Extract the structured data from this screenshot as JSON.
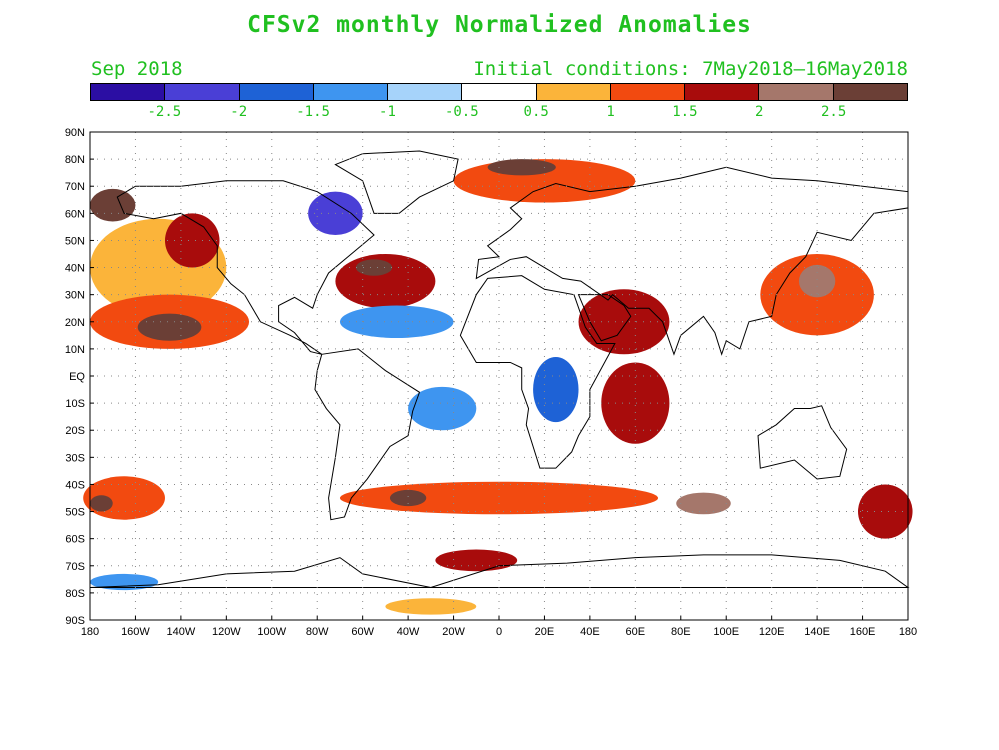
{
  "title": "CFSv2 monthly Normalized Anomalies",
  "valid_month": "Sep 2018",
  "initial_conditions": "Initial conditions: 7May2018–16May2018",
  "colorbar": {
    "colors": [
      "#2b0ea3",
      "#4a3fd6",
      "#1e62d6",
      "#3e95f0",
      "#a6d3fa",
      "#ffffff",
      "#fbb43a",
      "#f24a10",
      "#a80c0c",
      "#a5776b",
      "#6b3f36"
    ],
    "labels": [
      "-2.5",
      "-2",
      "-1.5",
      "-1",
      "-0.5",
      "0.5",
      "1",
      "1.5",
      "2",
      "2.5"
    ]
  },
  "lat_labels": [
    "90N",
    "80N",
    "70N",
    "60N",
    "50N",
    "40N",
    "30N",
    "20N",
    "10N",
    "EQ",
    "10S",
    "20S",
    "30S",
    "40S",
    "50S",
    "60S",
    "70S",
    "80S",
    "90S"
  ],
  "lon_labels": [
    "180",
    "160W",
    "140W",
    "120W",
    "100W",
    "80W",
    "60W",
    "40W",
    "20W",
    "0",
    "20E",
    "40E",
    "60E",
    "80E",
    "100E",
    "120E",
    "140E",
    "160E",
    "180"
  ],
  "anomaly_regions": [
    {
      "name": "north-pacific-warm",
      "lon": -150,
      "lat": 40,
      "rx": 30,
      "ry": 18,
      "level": 0.8
    },
    {
      "name": "north-pacific-core",
      "lon": -135,
      "lat": 50,
      "rx": 12,
      "ry": 10,
      "level": 1.5
    },
    {
      "name": "east-pacific-warm",
      "lon": -145,
      "lat": 20,
      "rx": 35,
      "ry": 10,
      "level": 1.2
    },
    {
      "name": "east-pacific-core",
      "lon": -145,
      "lat": 18,
      "rx": 14,
      "ry": 5,
      "level": 2.6
    },
    {
      "name": "alaska-core",
      "lon": -170,
      "lat": 63,
      "rx": 10,
      "ry": 6,
      "level": 2.6
    },
    {
      "name": "gulf-stream-warm",
      "lon": -50,
      "lat": 35,
      "rx": 22,
      "ry": 10,
      "level": 1.5
    },
    {
      "name": "gulf-stream-core",
      "lon": -55,
      "lat": 40,
      "rx": 8,
      "ry": 3,
      "level": 2.6
    },
    {
      "name": "labrador-cold",
      "lon": -72,
      "lat": 60,
      "rx": 12,
      "ry": 8,
      "level": -2.5
    },
    {
      "name": "atlantic-cold",
      "lon": -45,
      "lat": 20,
      "rx": 25,
      "ry": 6,
      "level": -1.2
    },
    {
      "name": "south-atlantic-cold",
      "lon": -25,
      "lat": -12,
      "rx": 15,
      "ry": 8,
      "level": -1.2
    },
    {
      "name": "central-africa-cold",
      "lon": 25,
      "lat": -5,
      "rx": 10,
      "ry": 12,
      "level": -1.8
    },
    {
      "name": "barents-warm",
      "lon": 20,
      "lat": 72,
      "rx": 40,
      "ry": 8,
      "level": 1.2
    },
    {
      "name": "barents-core",
      "lon": 10,
      "lat": 77,
      "rx": 15,
      "ry": 3,
      "level": 2.6
    },
    {
      "name": "arabian-warm",
      "lon": 55,
      "lat": 20,
      "rx": 20,
      "ry": 12,
      "level": 1.5
    },
    {
      "name": "indian-ocean-warm",
      "lon": 60,
      "lat": -10,
      "rx": 15,
      "ry": 15,
      "level": 1.5
    },
    {
      "name": "west-pacific-warm",
      "lon": 140,
      "lat": 30,
      "rx": 25,
      "ry": 15,
      "level": 1.2
    },
    {
      "name": "west-pacific-core",
      "lon": 140,
      "lat": 35,
      "rx": 8,
      "ry": 6,
      "level": 2
    },
    {
      "name": "south-pacific-warm",
      "lon": -165,
      "lat": -45,
      "rx": 18,
      "ry": 8,
      "level": 1.2
    },
    {
      "name": "south-pacific-core",
      "lon": -175,
      "lat": -47,
      "rx": 5,
      "ry": 3,
      "level": 2.6
    },
    {
      "name": "southern-ocean-warm",
      "lon": 0,
      "lat": -45,
      "rx": 70,
      "ry": 6,
      "level": 1.2
    },
    {
      "name": "southern-ocean-cores",
      "lon": -40,
      "lat": -45,
      "rx": 8,
      "ry": 3,
      "level": 2.6
    },
    {
      "name": "southern-indian-core",
      "lon": 90,
      "lat": -47,
      "rx": 12,
      "ry": 4,
      "level": 2
    },
    {
      "name": "tasman-warm",
      "lon": 170,
      "lat": -50,
      "rx": 12,
      "ry": 10,
      "level": 1.5
    },
    {
      "name": "weddell-warm",
      "lon": -10,
      "lat": -68,
      "rx": 18,
      "ry": 4,
      "level": 1.5
    },
    {
      "name": "ross-cold",
      "lon": -165,
      "lat": -76,
      "rx": 15,
      "ry": 3,
      "level": -1.5
    },
    {
      "name": "antarctic-warm",
      "lon": -30,
      "lat": -85,
      "rx": 20,
      "ry": 3,
      "level": 0.8
    }
  ]
}
